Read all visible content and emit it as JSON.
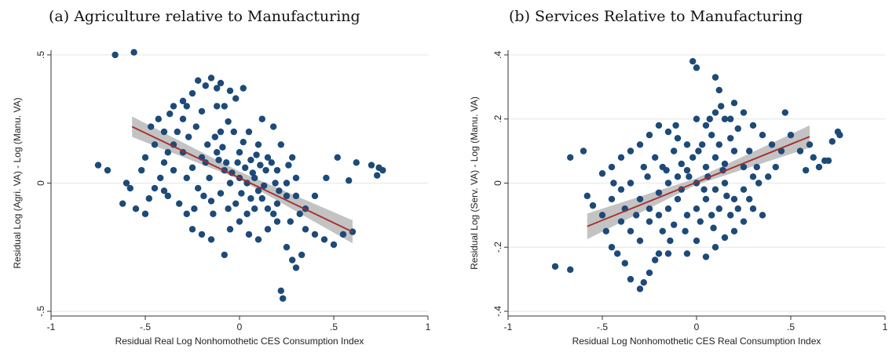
{
  "colors": {
    "marker": "#1d4a78",
    "fit_line": "#a52a2a",
    "ci_band": "#b9b9b9",
    "grid": "#e6e6e6",
    "axis": "#333333"
  },
  "chart_data": [
    {
      "type": "scatter",
      "title": "(a) Agriculture relative to Manufacturing",
      "xlabel": "Residual Real Log Nonhomothetic CES Consumption Index",
      "ylabel": "Residual Log (Agri. VA) - Log (Manu. VA)",
      "xlim": [
        -1,
        1
      ],
      "ylim": [
        -0.5,
        0.5
      ],
      "xticks": [
        -1,
        -0.5,
        0,
        0.5,
        1
      ],
      "xtick_labels": [
        "-1",
        "-.5",
        "0",
        ".5",
        "1"
      ],
      "yticks": [
        -0.5,
        0,
        0.5
      ],
      "ytick_labels": [
        "-.5",
        "0",
        ".5"
      ],
      "grid": true,
      "fit_line": {
        "x": [
          -0.57,
          0.6
        ],
        "y": [
          0.22,
          -0.19
        ]
      },
      "ci_band": {
        "x": [
          -0.57,
          0.0,
          0.6
        ],
        "upper": [
          0.26,
          0.045,
          -0.145
        ],
        "lower": [
          0.18,
          0.015,
          -0.235
        ]
      },
      "points": [
        [
          -0.66,
          0.5
        ],
        [
          -0.56,
          0.51
        ],
        [
          -0.75,
          0.07
        ],
        [
          -0.7,
          0.05
        ],
        [
          -0.6,
          0.0
        ],
        [
          -0.58,
          -0.02
        ],
        [
          -0.62,
          -0.08
        ],
        [
          -0.55,
          -0.1
        ],
        [
          -0.5,
          -0.12
        ],
        [
          -0.48,
          -0.06
        ],
        [
          -0.45,
          -0.02
        ],
        [
          -0.42,
          0.02
        ],
        [
          -0.4,
          0.08
        ],
        [
          -0.38,
          0.12
        ],
        [
          -0.35,
          0.15
        ],
        [
          -0.33,
          0.2
        ],
        [
          -0.3,
          0.25
        ],
        [
          -0.28,
          0.3
        ],
        [
          -0.25,
          0.35
        ],
        [
          -0.22,
          0.4
        ],
        [
          -0.18,
          0.38
        ],
        [
          -0.15,
          0.41
        ],
        [
          -0.12,
          0.37
        ],
        [
          -0.1,
          0.39
        ],
        [
          -0.05,
          0.36
        ],
        [
          -0.02,
          0.33
        ],
        [
          0.02,
          0.37
        ],
        [
          -0.08,
          0.3
        ],
        [
          -0.2,
          0.28
        ],
        [
          -0.3,
          0.32
        ],
        [
          -0.35,
          0.3
        ],
        [
          -0.4,
          0.2
        ],
        [
          -0.45,
          0.15
        ],
        [
          -0.5,
          0.1
        ],
        [
          -0.52,
          0.05
        ],
        [
          -0.38,
          -0.05
        ],
        [
          -0.32,
          -0.08
        ],
        [
          -0.28,
          -0.12
        ],
        [
          -0.25,
          -0.18
        ],
        [
          -0.2,
          -0.2
        ],
        [
          -0.15,
          -0.22
        ],
        [
          -0.08,
          -0.28
        ],
        [
          -0.05,
          -0.18
        ],
        [
          0.0,
          -0.15
        ],
        [
          0.05,
          -0.2
        ],
        [
          0.1,
          -0.22
        ],
        [
          0.15,
          -0.18
        ],
        [
          0.2,
          -0.15
        ],
        [
          0.25,
          -0.25
        ],
        [
          0.28,
          -0.3
        ],
        [
          0.3,
          -0.33
        ],
        [
          0.33,
          -0.28
        ],
        [
          0.22,
          -0.42
        ],
        [
          0.23,
          -0.45
        ],
        [
          0.35,
          -0.18
        ],
        [
          0.4,
          -0.2
        ],
        [
          0.45,
          -0.22
        ],
        [
          0.5,
          -0.24
        ],
        [
          0.55,
          -0.2
        ],
        [
          0.6,
          -0.19
        ],
        [
          0.52,
          0.1
        ],
        [
          0.58,
          0.01
        ],
        [
          0.62,
          0.08
        ],
        [
          0.7,
          0.07
        ],
        [
          0.74,
          0.06
        ],
        [
          0.76,
          0.05
        ],
        [
          0.73,
          0.03
        ],
        [
          0.46,
          0.02
        ],
        [
          0.4,
          -0.05
        ],
        [
          0.35,
          -0.1
        ],
        [
          0.3,
          -0.05
        ],
        [
          0.25,
          0.0
        ],
        [
          0.2,
          0.05
        ],
        [
          0.15,
          0.1
        ],
        [
          0.1,
          0.15
        ],
        [
          0.05,
          0.2
        ],
        [
          0.12,
          0.25
        ],
        [
          0.18,
          0.22
        ],
        [
          0.22,
          0.15
        ],
        [
          0.28,
          0.1
        ],
        [
          -0.28,
          0.02
        ],
        [
          -0.22,
          -0.02
        ],
        [
          -0.18,
          0.08
        ],
        [
          -0.12,
          0.12
        ],
        [
          -0.08,
          0.05
        ],
        [
          -0.05,
          0.0
        ],
        [
          0.0,
          0.02
        ],
        [
          0.03,
          0.06
        ],
        [
          0.06,
          0.09
        ],
        [
          0.08,
          0.02
        ],
        [
          0.1,
          -0.03
        ],
        [
          0.12,
          -0.06
        ],
        [
          -0.1,
          -0.04
        ],
        [
          -0.15,
          -0.07
        ],
        [
          -0.2,
          0.1
        ],
        [
          -0.25,
          0.06
        ],
        [
          -0.3,
          0.12
        ],
        [
          -0.35,
          0.05
        ],
        [
          -0.4,
          -0.03
        ],
        [
          0.0,
          0.12
        ],
        [
          0.02,
          0.16
        ],
        [
          -0.03,
          0.2
        ],
        [
          -0.06,
          0.24
        ],
        [
          -0.13,
          0.18
        ],
        [
          -0.17,
          0.15
        ],
        [
          -0.23,
          0.22
        ],
        [
          -0.27,
          0.18
        ],
        [
          0.15,
          -0.1
        ],
        [
          0.18,
          -0.12
        ],
        [
          0.2,
          -0.08
        ],
        [
          0.25,
          -0.05
        ],
        [
          0.3,
          0.02
        ],
        [
          -0.02,
          -0.08
        ],
        [
          0.04,
          -0.12
        ],
        [
          0.08,
          -0.1
        ],
        [
          -0.06,
          -0.1
        ],
        [
          -0.1,
          0.2
        ],
        [
          0.14,
          0.05
        ],
        [
          0.19,
          0.0
        ],
        [
          -0.16,
          0.02
        ],
        [
          0.07,
          0.04
        ],
        [
          -0.01,
          0.08
        ],
        [
          0.27,
          -0.15
        ],
        [
          0.32,
          -0.12
        ],
        [
          -0.43,
          0.25
        ],
        [
          -0.37,
          0.27
        ],
        [
          -0.47,
          0.22
        ],
        [
          -0.12,
          0.3
        ],
        [
          0.09,
          0.11
        ],
        [
          0.11,
          0.07
        ],
        [
          -0.09,
          0.14
        ],
        [
          0.21,
          -0.03
        ],
        [
          0.26,
          0.07
        ],
        [
          0.01,
          -0.04
        ],
        [
          -0.04,
          0.04
        ],
        [
          0.13,
          -0.01
        ],
        [
          -0.14,
          -0.12
        ],
        [
          -0.19,
          -0.05
        ],
        [
          -0.24,
          -0.1
        ],
        [
          0.17,
          0.08
        ],
        [
          0.06,
          -0.06
        ],
        [
          -0.07,
          0.08
        ],
        [
          0.04,
          0.0
        ],
        [
          -0.11,
          0.09
        ]
      ]
    },
    {
      "type": "scatter",
      "title": "(b) Services Relative to Manufacturing",
      "xlabel": "Residual Log Nonhomothetic CES Real Consumption Index",
      "ylabel": "Residual Log (Serv. VA) - Log (Manu. VA)",
      "xlim": [
        -1,
        1
      ],
      "ylim": [
        -0.4,
        0.4
      ],
      "xticks": [
        -1,
        -0.5,
        0,
        0.5,
        1
      ],
      "xtick_labels": [
        "-1",
        "-.5",
        "0",
        ".5",
        "1"
      ],
      "yticks": [
        -0.4,
        -0.2,
        0,
        0.2,
        0.4
      ],
      "ytick_labels": [
        "-.4",
        "-.2",
        "0",
        ".2",
        ".4"
      ],
      "grid": true,
      "fit_line": {
        "x": [
          -0.58,
          0.6
        ],
        "y": [
          -0.135,
          0.145
        ]
      },
      "ci_band": {
        "x": [
          -0.58,
          0.0,
          0.6
        ],
        "upper": [
          -0.095,
          0.015,
          0.18
        ],
        "lower": [
          -0.175,
          -0.005,
          0.11
        ]
      },
      "points": [
        [
          -0.02,
          0.38
        ],
        [
          0.0,
          0.36
        ],
        [
          0.1,
          0.33
        ],
        [
          0.12,
          0.29
        ],
        [
          -0.75,
          -0.26
        ],
        [
          -0.67,
          -0.27
        ],
        [
          -0.67,
          0.08
        ],
        [
          -0.6,
          0.1
        ],
        [
          -0.58,
          -0.04
        ],
        [
          -0.55,
          -0.07
        ],
        [
          -0.5,
          -0.1
        ],
        [
          -0.48,
          -0.15
        ],
        [
          -0.45,
          -0.2
        ],
        [
          -0.42,
          -0.22
        ],
        [
          -0.38,
          -0.25
        ],
        [
          -0.35,
          -0.3
        ],
        [
          -0.3,
          -0.33
        ],
        [
          -0.28,
          -0.31
        ],
        [
          -0.25,
          -0.28
        ],
        [
          -0.22,
          -0.24
        ],
        [
          -0.2,
          -0.22
        ],
        [
          -0.15,
          -0.22
        ],
        [
          -0.05,
          -0.22
        ],
        [
          0.05,
          -0.23
        ],
        [
          0.0,
          -0.18
        ],
        [
          0.1,
          -0.2
        ],
        [
          0.15,
          -0.17
        ],
        [
          0.2,
          -0.15
        ],
        [
          0.25,
          -0.12
        ],
        [
          0.3,
          -0.08
        ],
        [
          0.35,
          -0.1
        ],
        [
          -0.5,
          0.03
        ],
        [
          -0.45,
          0.05
        ],
        [
          -0.4,
          0.08
        ],
        [
          -0.35,
          0.1
        ],
        [
          -0.3,
          0.12
        ],
        [
          -0.25,
          0.15
        ],
        [
          -0.2,
          0.18
        ],
        [
          -0.15,
          0.16
        ],
        [
          -0.1,
          0.14
        ],
        [
          -0.05,
          0.12
        ],
        [
          0.0,
          0.2
        ],
        [
          0.05,
          0.18
        ],
        [
          0.1,
          0.22
        ],
        [
          0.15,
          0.2
        ],
        [
          0.2,
          0.25
        ],
        [
          0.25,
          0.22
        ],
        [
          0.3,
          0.18
        ],
        [
          0.35,
          0.15
        ],
        [
          0.4,
          0.12
        ],
        [
          0.45,
          0.1
        ],
        [
          0.5,
          0.15
        ],
        [
          0.55,
          0.1
        ],
        [
          0.6,
          0.12
        ],
        [
          0.62,
          0.08
        ],
        [
          0.65,
          0.05
        ],
        [
          0.68,
          0.07
        ],
        [
          0.72,
          0.13
        ],
        [
          0.75,
          0.16
        ],
        [
          0.76,
          0.15
        ],
        [
          0.7,
          0.07
        ],
        [
          0.58,
          0.04
        ],
        [
          0.47,
          0.22
        ],
        [
          -0.45,
          -0.05
        ],
        [
          -0.4,
          -0.02
        ],
        [
          -0.35,
          0.0
        ],
        [
          -0.3,
          -0.05
        ],
        [
          -0.25,
          -0.08
        ],
        [
          -0.2,
          -0.03
        ],
        [
          -0.15,
          0.0
        ],
        [
          -0.1,
          0.02
        ],
        [
          -0.05,
          0.04
        ],
        [
          0.0,
          0.0
        ],
        [
          0.05,
          0.05
        ],
        [
          0.1,
          0.08
        ],
        [
          0.15,
          0.06
        ],
        [
          0.2,
          0.1
        ],
        [
          0.25,
          0.05
        ],
        [
          0.3,
          0.02
        ],
        [
          -0.4,
          -0.12
        ],
        [
          -0.35,
          -0.15
        ],
        [
          -0.3,
          -0.18
        ],
        [
          -0.25,
          -0.12
        ],
        [
          -0.2,
          -0.1
        ],
        [
          -0.15,
          -0.08
        ],
        [
          -0.1,
          -0.05
        ],
        [
          -0.05,
          -0.1
        ],
        [
          0.0,
          -0.08
        ],
        [
          0.05,
          -0.05
        ],
        [
          0.1,
          -0.02
        ],
        [
          0.15,
          0.0
        ],
        [
          0.2,
          -0.05
        ],
        [
          0.25,
          -0.02
        ],
        [
          -0.28,
          0.05
        ],
        [
          -0.22,
          0.08
        ],
        [
          -0.18,
          0.05
        ],
        [
          -0.12,
          0.1
        ],
        [
          -0.08,
          0.06
        ],
        [
          -0.02,
          0.08
        ],
        [
          0.03,
          0.12
        ],
        [
          0.08,
          0.15
        ],
        [
          0.12,
          0.12
        ],
        [
          0.18,
          0.14
        ],
        [
          0.22,
          0.17
        ],
        [
          0.28,
          0.1
        ],
        [
          0.32,
          0.05
        ],
        [
          -0.18,
          -0.15
        ],
        [
          -0.12,
          -0.13
        ],
        [
          -0.06,
          -0.15
        ],
        [
          0.02,
          -0.12
        ],
        [
          0.08,
          -0.1
        ],
        [
          0.12,
          -0.08
        ],
        [
          0.18,
          -0.1
        ],
        [
          0.22,
          -0.08
        ],
        [
          0.28,
          -0.05
        ],
        [
          0.38,
          0.02
        ],
        [
          0.42,
          0.05
        ],
        [
          -0.26,
          0.02
        ],
        [
          -0.16,
          0.04
        ],
        [
          -0.04,
          0.02
        ],
        [
          0.06,
          0.02
        ],
        [
          0.14,
          0.04
        ],
        [
          -0.08,
          -0.02
        ],
        [
          0.04,
          -0.02
        ],
        [
          0.16,
          -0.04
        ],
        [
          -0.32,
          -0.1
        ],
        [
          -0.38,
          -0.08
        ],
        [
          0.07,
          0.2
        ],
        [
          0.13,
          0.24
        ],
        [
          0.18,
          0.2
        ],
        [
          -0.11,
          0.18
        ],
        [
          0.33,
          0.0
        ],
        [
          -0.44,
          0.0
        ],
        [
          0.01,
          0.1
        ],
        [
          -0.14,
          -0.18
        ],
        [
          0.09,
          -0.14
        ]
      ]
    }
  ]
}
